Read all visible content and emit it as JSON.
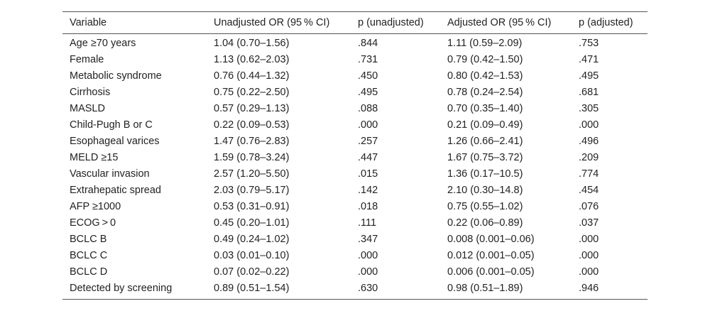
{
  "table": {
    "columns": [
      "Variable",
      "Unadjusted OR (95 % CI)",
      "p (unadjusted)",
      "Adjusted OR (95 % CI)",
      "p (adjusted)"
    ],
    "rows": [
      [
        "Age ≥70 years",
        "1.04 (0.70–1.56)",
        ".844",
        "1.11 (0.59–2.09)",
        ".753"
      ],
      [
        "Female",
        "1.13 (0.62–2.03)",
        ".731",
        "0.79 (0.42–1.50)",
        ".471"
      ],
      [
        "Metabolic syndrome",
        "0.76 (0.44–1.32)",
        ".450",
        "0.80 (0.42–1.53)",
        ".495"
      ],
      [
        "Cirrhosis",
        "0.75 (0.22–2.50)",
        ".495",
        "0.78 (0.24–2.54)",
        ".681"
      ],
      [
        "MASLD",
        "0.57 (0.29–1.13)",
        ".088",
        "0.70 (0.35–1.40)",
        ".305"
      ],
      [
        "Child-Pugh B or C",
        "0.22 (0.09–0.53)",
        ".000",
        "0.21 (0.09–0.49)",
        ".000"
      ],
      [
        "Esophageal varices",
        "1.47 (0.76–2.83)",
        ".257",
        "1.26 (0.66–2.41)",
        ".496"
      ],
      [
        "MELD ≥15",
        "1.59 (0.78–3.24)",
        ".447",
        "1.67 (0.75–3.72)",
        ".209"
      ],
      [
        "Vascular invasion",
        "2.57 (1.20–5.50)",
        ".015",
        "1.36 (0.17–10.5)",
        ".774"
      ],
      [
        "Extrahepatic spread",
        "2.03 (0.79–5.17)",
        ".142",
        "2.10 (0.30–14.8)",
        ".454"
      ],
      [
        "AFP ≥1000",
        "0.53 (0.31–0.91)",
        ".018",
        "0.75 (0.55–1.02)",
        ".076"
      ],
      [
        "ECOG > 0",
        "0.45 (0.20–1.01)",
        ".111",
        "0.22 (0.06–0.89)",
        ".037"
      ],
      [
        "BCLC B",
        "0.49 (0.24–1.02)",
        ".347",
        "0.008 (0.001–0.06)",
        ".000"
      ],
      [
        "BCLC C",
        "0.03 (0.01–0.10)",
        ".000",
        "0.012 (0.001–0.05)",
        ".000"
      ],
      [
        "BCLC D",
        "0.07 (0.02–0.22)",
        ".000",
        "0.006 (0.001–0.05)",
        ".000"
      ],
      [
        "Detected by screening",
        "0.89 (0.51–1.54)",
        ".630",
        "0.98 (0.51–1.89)",
        ".946"
      ]
    ]
  }
}
